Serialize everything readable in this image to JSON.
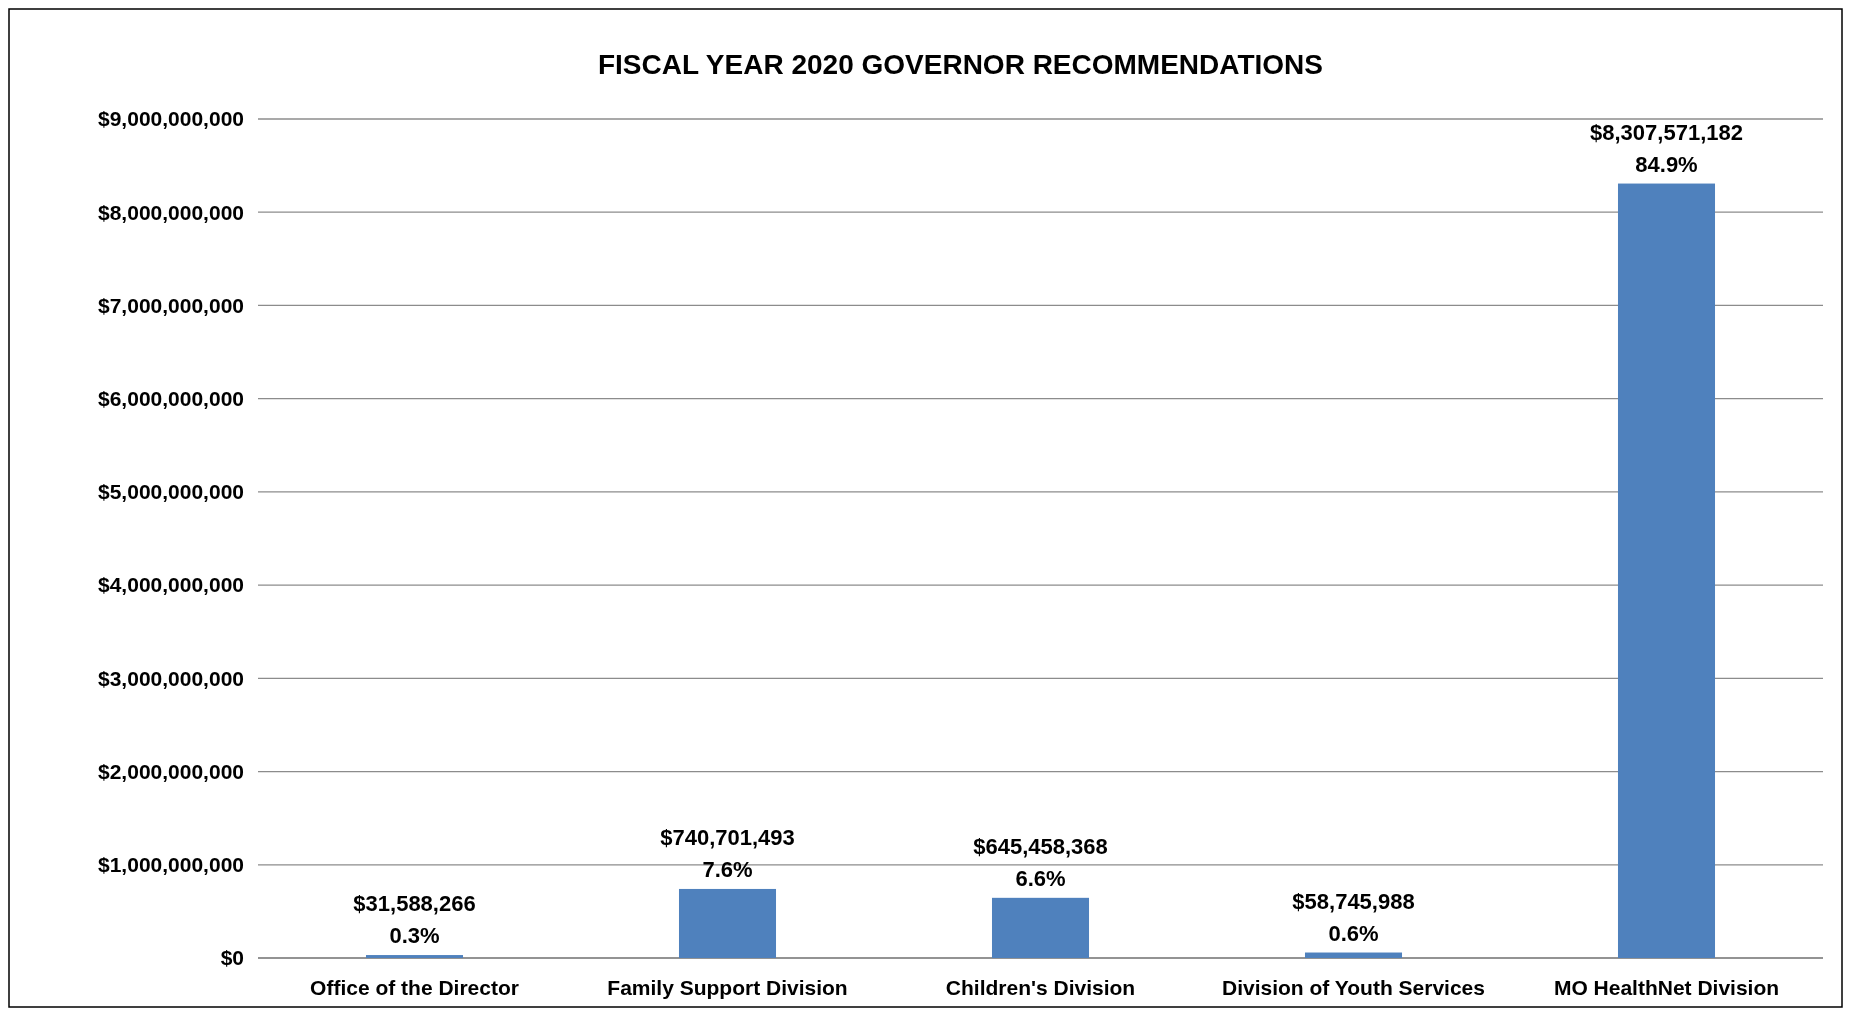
{
  "chart_data": {
    "type": "bar",
    "title": "FISCAL YEAR 2020 GOVERNOR RECOMMENDATIONS",
    "categories": [
      "Office of the Director",
      "Family Support Division",
      "Children's Division",
      "Division of Youth Services",
      "MO HealthNet Division"
    ],
    "values": [
      31588266,
      740701493,
      645458368,
      58745988,
      8307571182
    ],
    "value_labels": [
      "$31,588,266\n0.3%",
      "$740,701,493\n7.6%",
      "$645,458,368\n6.6%",
      "$58,745,988\n0.6%",
      "$8,307,571,182\n84.9%"
    ],
    "color": "#4f81bd",
    "ylim": [
      0,
      9000000000
    ],
    "yticks": [
      {
        "value": 0,
        "label": "$0"
      },
      {
        "value": 1000000000,
        "label": "$1,000,000,000"
      },
      {
        "value": 2000000000,
        "label": "$2,000,000,000"
      },
      {
        "value": 3000000000,
        "label": "$3,000,000,000"
      },
      {
        "value": 4000000000,
        "label": "$4,000,000,000"
      },
      {
        "value": 5000000000,
        "label": "$5,000,000,000"
      },
      {
        "value": 6000000000,
        "label": "$6,000,000,000"
      },
      {
        "value": 7000000000,
        "label": "$7,000,000,000"
      },
      {
        "value": 8000000000,
        "label": "$8,000,000,000"
      },
      {
        "value": 9000000000,
        "label": "$9,000,000,000"
      }
    ],
    "grid": "y"
  }
}
